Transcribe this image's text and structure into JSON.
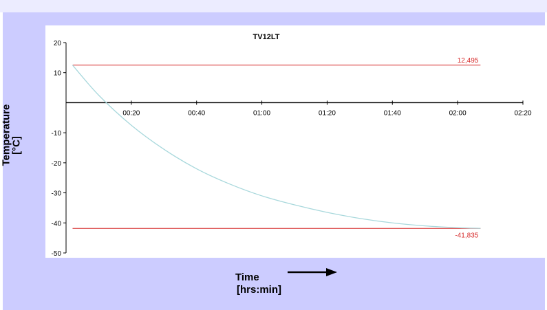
{
  "chart_data": {
    "type": "line",
    "title": "TV12LT",
    "xlabel": "Time\n[hrs:min]",
    "ylabel": "Temperature\n[°C]",
    "xlim_min": [
      0,
      140
    ],
    "ylim": [
      -50,
      20
    ],
    "x_ticks": [
      "00:20",
      "00:40",
      "01:00",
      "01:20",
      "01:40",
      "02:00",
      "02:20"
    ],
    "y_ticks": [
      "20",
      "10",
      "-10",
      "-20",
      "-30",
      "-40",
      "-50"
    ],
    "series": [
      {
        "color": "#a8d8dc",
        "x_min": [
          2,
          10,
          20,
          30,
          40,
          50,
          60,
          70,
          80,
          90,
          100,
          110,
          120,
          127
        ],
        "y": [
          12.5,
          2.5,
          -7.5,
          -15.5,
          -22,
          -27,
          -31,
          -34,
          -36.5,
          -38.5,
          -40,
          -41,
          -41.6,
          -41.8
        ]
      }
    ],
    "reference_lines": [
      {
        "label": "12,495",
        "value": 12.495,
        "color": "#d62a2a"
      },
      {
        "label": "-41,835",
        "value": -41.835,
        "color": "#d62a2a"
      }
    ],
    "grid": false
  },
  "labels": {
    "y_line1": "Temperature",
    "y_line2": "[°C]",
    "x_line1": "Time",
    "x_line2": "[hrs:min]"
  },
  "colors": {
    "panel": "#ccccff",
    "band": "#ececff",
    "curve": "#a8d8dc",
    "ref": "#d62a2a"
  }
}
